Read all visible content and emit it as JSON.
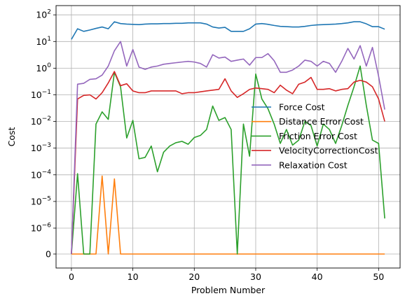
{
  "chart_data": {
    "type": "line",
    "title": "",
    "xlabel": "Problem Number",
    "ylabel": "Cost",
    "yscale": "symlog",
    "linthresh": 1e-06,
    "xlim": [
      -2.5,
      53.5
    ],
    "xticks": [
      0,
      10,
      20,
      30,
      40,
      50
    ],
    "xtick_labels": [
      "0",
      "10",
      "20",
      "30",
      "40",
      "50"
    ],
    "yticks": [
      0,
      1e-06,
      1e-05,
      0.0001,
      0.001,
      0.01,
      0.1,
      1,
      10,
      100
    ],
    "ytick_labels": [
      {
        "base": "0",
        "exp": ""
      },
      {
        "base": "10",
        "exp": "−6"
      },
      {
        "base": "10",
        "exp": "−5"
      },
      {
        "base": "10",
        "exp": "−4"
      },
      {
        "base": "10",
        "exp": "−3"
      },
      {
        "base": "10",
        "exp": "−2"
      },
      {
        "base": "10",
        "exp": "−1"
      },
      {
        "base": "10",
        "exp": "0"
      },
      {
        "base": "10",
        "exp": "1"
      },
      {
        "base": "10",
        "exp": "2"
      }
    ],
    "grid": true,
    "legend_position": "center-right",
    "series": [
      {
        "name": "Force Cost",
        "color": "#1f77b4",
        "values": [
          12,
          30,
          24,
          27,
          31,
          35,
          30,
          55,
          47,
          45,
          44,
          43,
          45,
          46,
          46,
          47,
          47,
          48,
          48,
          50,
          50,
          50,
          45,
          35,
          32,
          34,
          24,
          24,
          24,
          30,
          45,
          47,
          44,
          40,
          37,
          36,
          35,
          35,
          37,
          40,
          42,
          43,
          44,
          45,
          47,
          50,
          55,
          55,
          46,
          36,
          36,
          29
        ]
      },
      {
        "name": "Distance Error Cost",
        "color": "#ff7f0e",
        "values": [
          0,
          0,
          0,
          0,
          0,
          9e-05,
          0,
          7e-05,
          0,
          0,
          0,
          0,
          0,
          0,
          0,
          0,
          0,
          0,
          0,
          0,
          0,
          0,
          0,
          0,
          0,
          0,
          0,
          0,
          0,
          0,
          0,
          0,
          0,
          0,
          0,
          0,
          0,
          0,
          0,
          0,
          0,
          0,
          0,
          0,
          0,
          0,
          0,
          0,
          0,
          0,
          0,
          0
        ]
      },
      {
        "name": "Friction Error Cost",
        "color": "#2ca02c",
        "values": [
          0,
          0.00011,
          0,
          0,
          0.008,
          0.023,
          0.012,
          0.7,
          0.2,
          0.0024,
          0.011,
          0.0004,
          0.00045,
          0.0012,
          0.00013,
          0.0007,
          0.0012,
          0.0016,
          0.0018,
          0.0014,
          0.0025,
          0.003,
          0.005,
          0.038,
          0.011,
          0.014,
          0.005,
          0,
          0.008,
          0.0005,
          0.6,
          0.07,
          0.03,
          0.008,
          0.0015,
          0.005,
          0.0013,
          0.002,
          0.01,
          0.007,
          0.0012,
          0.008,
          0.005,
          0.0015,
          0.007,
          0.04,
          0.2,
          1.2,
          0.04,
          0.002,
          0.0015,
          2.3e-06
        ]
      },
      {
        "name": "VelocityCorrectionCost",
        "color": "#d62728",
        "values": [
          0,
          0.07,
          0.095,
          0.1,
          0.07,
          0.12,
          0.28,
          0.75,
          0.22,
          0.26,
          0.14,
          0.12,
          0.12,
          0.14,
          0.14,
          0.14,
          0.14,
          0.14,
          0.11,
          0.12,
          0.12,
          0.13,
          0.14,
          0.15,
          0.16,
          0.4,
          0.14,
          0.08,
          0.11,
          0.16,
          0.18,
          0.17,
          0.16,
          0.12,
          0.23,
          0.15,
          0.11,
          0.25,
          0.3,
          0.45,
          0.16,
          0.16,
          0.17,
          0.14,
          0.16,
          0.17,
          0.3,
          0.35,
          0.3,
          0.2,
          0.07,
          0.01
        ]
      },
      {
        "name": "Relaxation Cost",
        "color": "#9467bd",
        "values": [
          0,
          0.25,
          0.27,
          0.38,
          0.4,
          0.55,
          1.2,
          4.5,
          10,
          1.2,
          5,
          1.1,
          0.9,
          1.1,
          1.2,
          1.4,
          1.5,
          1.6,
          1.7,
          1.8,
          1.7,
          1.5,
          1.1,
          3.2,
          2.4,
          2.6,
          1.8,
          2,
          2.2,
          1.3,
          2.5,
          2.5,
          3.5,
          1.9,
          0.7,
          0.7,
          0.85,
          1.2,
          2,
          1.8,
          1.2,
          1.8,
          1.5,
          0.7,
          1.8,
          5.5,
          2.2,
          7,
          1.2,
          6,
          0.5,
          0.028
        ]
      }
    ]
  }
}
